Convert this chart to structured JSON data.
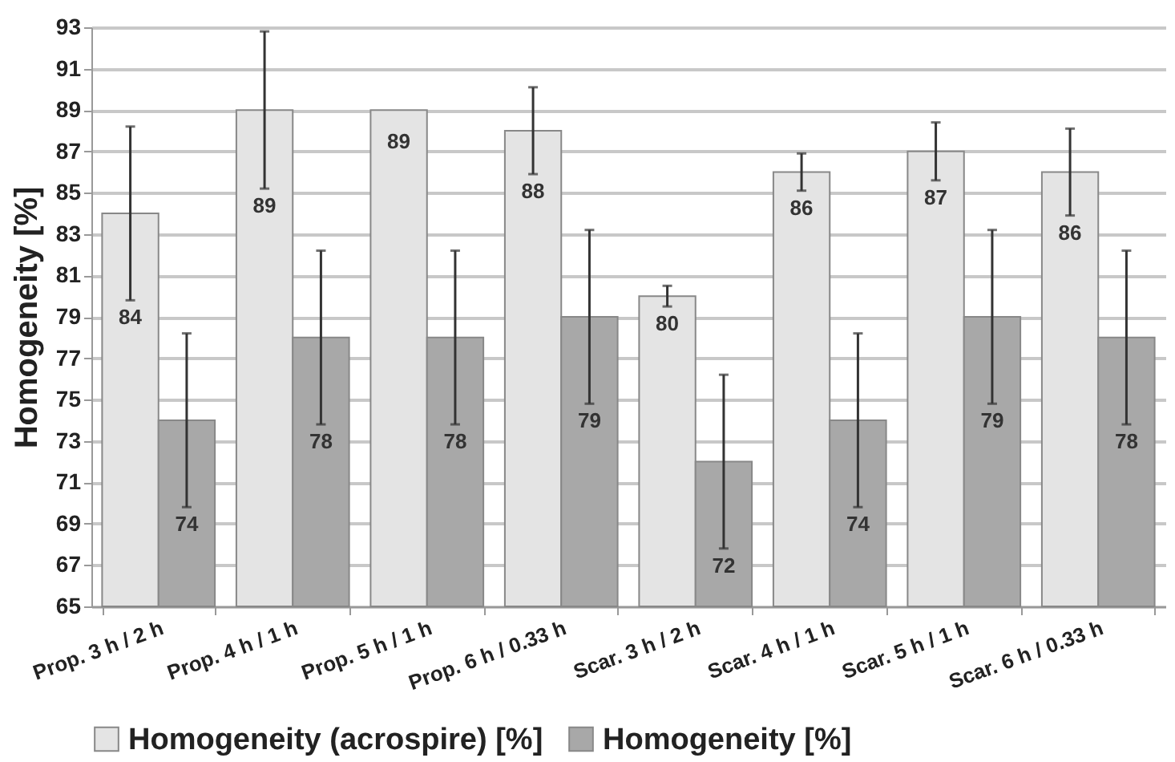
{
  "chart_data": {
    "type": "bar",
    "ylabel": "Homogeneity [%]",
    "categories": [
      "Prop. 3 h / 2 h",
      "Prop. 4 h / 1 h",
      "Prop. 5 h / 1 h",
      "Prop. 6 h / 0.33 h",
      "Scar. 3 h / 2 h",
      "Scar. 4 h / 1 h",
      "Scar. 5 h / 1 h",
      "Scar. 6 h / 0.33 h"
    ],
    "series": [
      {
        "name": "Homogeneity (acrospire) [%]",
        "color": "#e4e4e4",
        "values": [
          84,
          89,
          89,
          88,
          80,
          86,
          87,
          86
        ],
        "errors": [
          4.2,
          3.8,
          null,
          2.1,
          0.5,
          0.9,
          1.4,
          2.1
        ]
      },
      {
        "name": "Homogeneity [%]",
        "color": "#a8a8a8",
        "values": [
          74,
          78,
          78,
          79,
          72,
          74,
          79,
          78
        ],
        "errors": [
          4.2,
          4.2,
          4.2,
          4.2,
          4.2,
          4.2,
          4.2,
          4.2
        ]
      }
    ],
    "ylim": [
      65,
      93
    ],
    "yticks": [
      65,
      67,
      69,
      71,
      73,
      75,
      77,
      79,
      81,
      83,
      85,
      87,
      89,
      91,
      93
    ],
    "grid": "y",
    "legend": "bottom",
    "data_labels": true
  }
}
